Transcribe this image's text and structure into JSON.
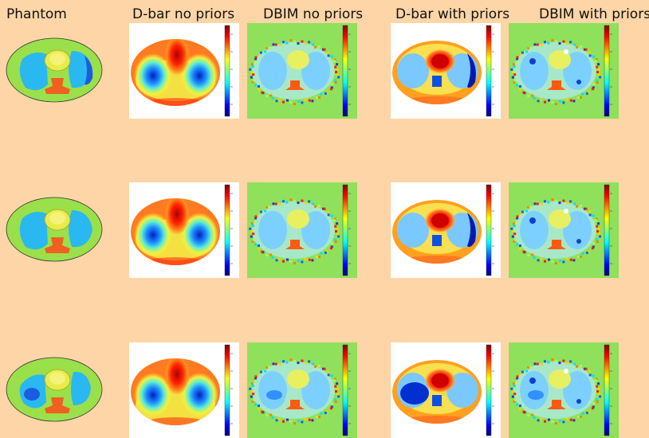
{
  "columns": [
    {
      "title": "Phantom"
    },
    {
      "title": "D-bar no priors"
    },
    {
      "title": "DBIM no priors"
    },
    {
      "title": "D-bar with priors"
    },
    {
      "title": "DBIM with priors"
    }
  ],
  "rows": [
    {
      "variant": "lungs-normal"
    },
    {
      "variant": "lungs-mid"
    },
    {
      "variant": "lungs-injury"
    }
  ],
  "colors": {
    "background": "#fed5a6",
    "phantom_body": "#9ae04a",
    "phantom_lung": "#2ab8f0",
    "phantom_heart": "#e8ec4a",
    "phantom_spine": "#f06020",
    "dbim_background": "#8fe05a"
  },
  "colorbar": "jet"
}
